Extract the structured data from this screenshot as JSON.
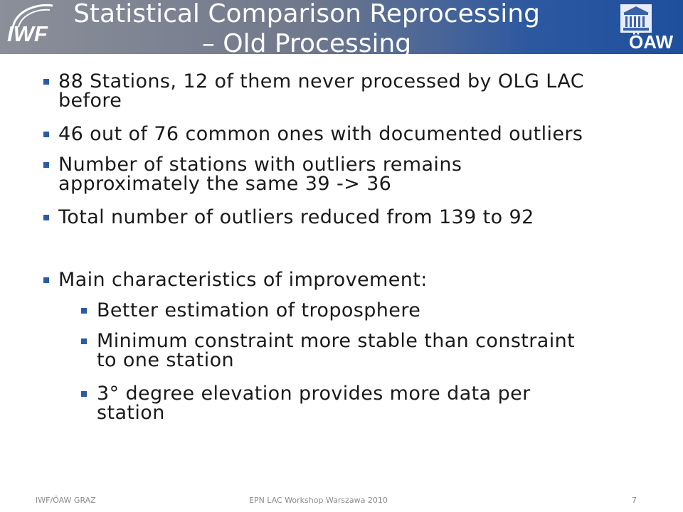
{
  "header": {
    "logo_left_text": "IWF",
    "logo_right_text": "ÖAW",
    "title_lines": [
      "Statistical Comparison Reprocessing",
      "– Old Processing"
    ]
  },
  "bullets": [
    {
      "level": 1,
      "lines": [
        "88 Stations, 12 of them never processed by OLG LAC",
        "before"
      ]
    },
    {
      "level": 1,
      "lines": [
        "46 out of 76 common ones with documented outliers"
      ]
    },
    {
      "level": 1,
      "lines": [
        "Number of stations with outliers remains",
        "approximately the same 39 -> 36"
      ]
    },
    {
      "level": 1,
      "lines": [
        "Total number of outliers reduced from 139 to 92"
      ]
    },
    {
      "level": 1,
      "lines": [
        "Main characteristics of improvement:"
      ]
    },
    {
      "level": 2,
      "lines": [
        "Better estimation of troposphere"
      ]
    },
    {
      "level": 2,
      "lines": [
        "Minimum constraint more stable than constraint",
        "to one station"
      ]
    },
    {
      "level": 2,
      "lines": [
        "3° degree elevation provides more data per",
        "station"
      ]
    }
  ],
  "footer": {
    "left": "IWF/ÖAW GRAZ",
    "center": "EPN LAC Workshop Warszawa 2010",
    "page_number": "7"
  },
  "colors": {
    "bullet_marker": "#2a5aa8",
    "header_blue": "#1e4f9e",
    "header_gray": "#8b8f99"
  }
}
